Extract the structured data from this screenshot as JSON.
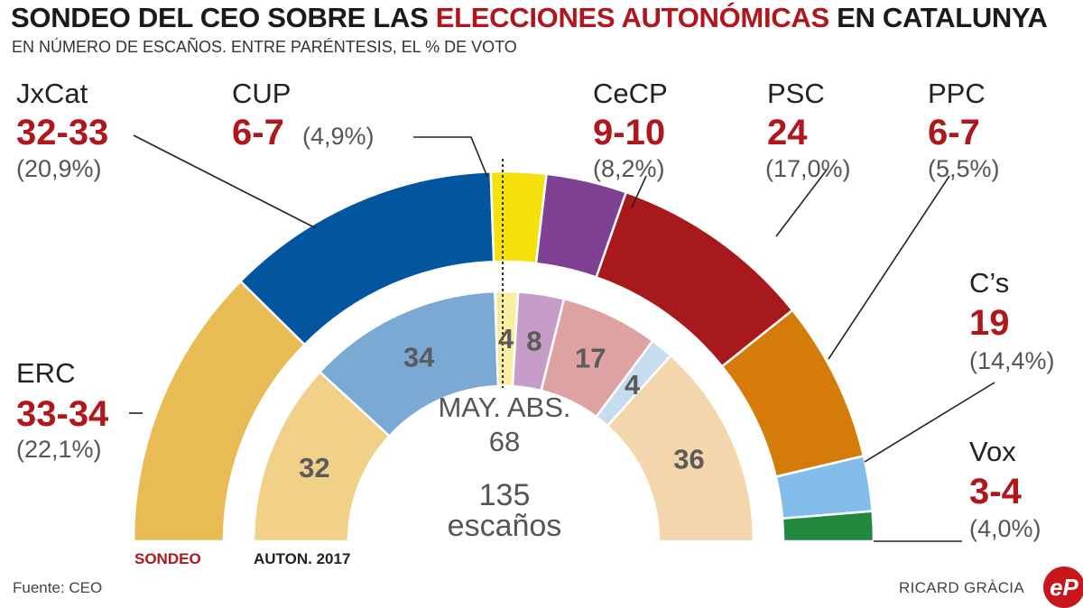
{
  "header": {
    "title_pre": "SONDEO DEL CEO SOBRE LAS ",
    "title_highlight": "ELECCIONES AUTONÓMICAS",
    "title_post": " EN CATALUNYA",
    "subtitle": "EN NÚMERO DE ESCAÑOS.  ENTRE PARÉNTESIS, EL % DE VOTO"
  },
  "center": {
    "majority_label": "MAY. ABS.",
    "majority_value": "68",
    "total_seats": "135",
    "total_label": "escaños"
  },
  "legend": {
    "sondeo": "SONDEO",
    "auton": "AUTON. 2017"
  },
  "footer": {
    "source": "Fuente: CEO",
    "author": "RICARD GRÀCIA",
    "logo": "eP"
  },
  "chart_data": {
    "type": "half-donut",
    "title": "SONDEO DEL CEO SOBRE LAS ELECCIONES AUTONÓMICAS EN CATALUNYA",
    "total_seats": 135,
    "majority": 68,
    "series": [
      {
        "name": "SONDEO",
        "parties": [
          {
            "party": "ERC",
            "seats_label": "33-34",
            "seats": 33.5,
            "vote": "(22,1%)",
            "color": "#e8bb54"
          },
          {
            "party": "JxCat",
            "seats_label": "32-33",
            "seats": 32.5,
            "vote": "(20,9%)",
            "color": "#0256a0"
          },
          {
            "party": "CUP",
            "seats_label": "6-7",
            "seats": 6.5,
            "vote": "(4,9%)",
            "color": "#f5e10b"
          },
          {
            "party": "CeCP",
            "seats_label": "9-10",
            "seats": 9.5,
            "vote": "(8,2%)",
            "color": "#7f3f93"
          },
          {
            "party": "PSC",
            "seats_label": "24",
            "seats": 24,
            "vote": "(17,0%)",
            "color": "#a8191c"
          },
          {
            "party": "C’s",
            "seats_label": "19",
            "seats": 19,
            "vote": "(14,4%)",
            "color": "#d47b0a"
          },
          {
            "party": "PPC",
            "seats_label": "6-7",
            "seats": 6.5,
            "vote": "(5,5%)",
            "color": "#82bde9"
          },
          {
            "party": "Vox",
            "seats_label": "3-4",
            "seats": 3.5,
            "vote": "(4,0%)",
            "color": "#21893d"
          }
        ]
      },
      {
        "name": "AUTON. 2017",
        "parties": [
          {
            "party": "ERC",
            "seats": 32,
            "label": "32",
            "color": "#f1d088"
          },
          {
            "party": "JxCat",
            "seats": 34,
            "label": "34",
            "color": "#7aa9d3"
          },
          {
            "party": "CUP",
            "seats": 4,
            "label": "4",
            "color": "#f9efa3"
          },
          {
            "party": "CeCP",
            "seats": 8,
            "label": "8",
            "color": "#c59dc8"
          },
          {
            "party": "PSC",
            "seats": 17,
            "label": "17",
            "color": "#dea2a2"
          },
          {
            "party": "PPC",
            "seats": 4,
            "label": "4",
            "color": "#c6dcef"
          },
          {
            "party": "C’s",
            "seats": 36,
            "label": "36",
            "color": "#f3d6ab"
          }
        ]
      }
    ]
  }
}
